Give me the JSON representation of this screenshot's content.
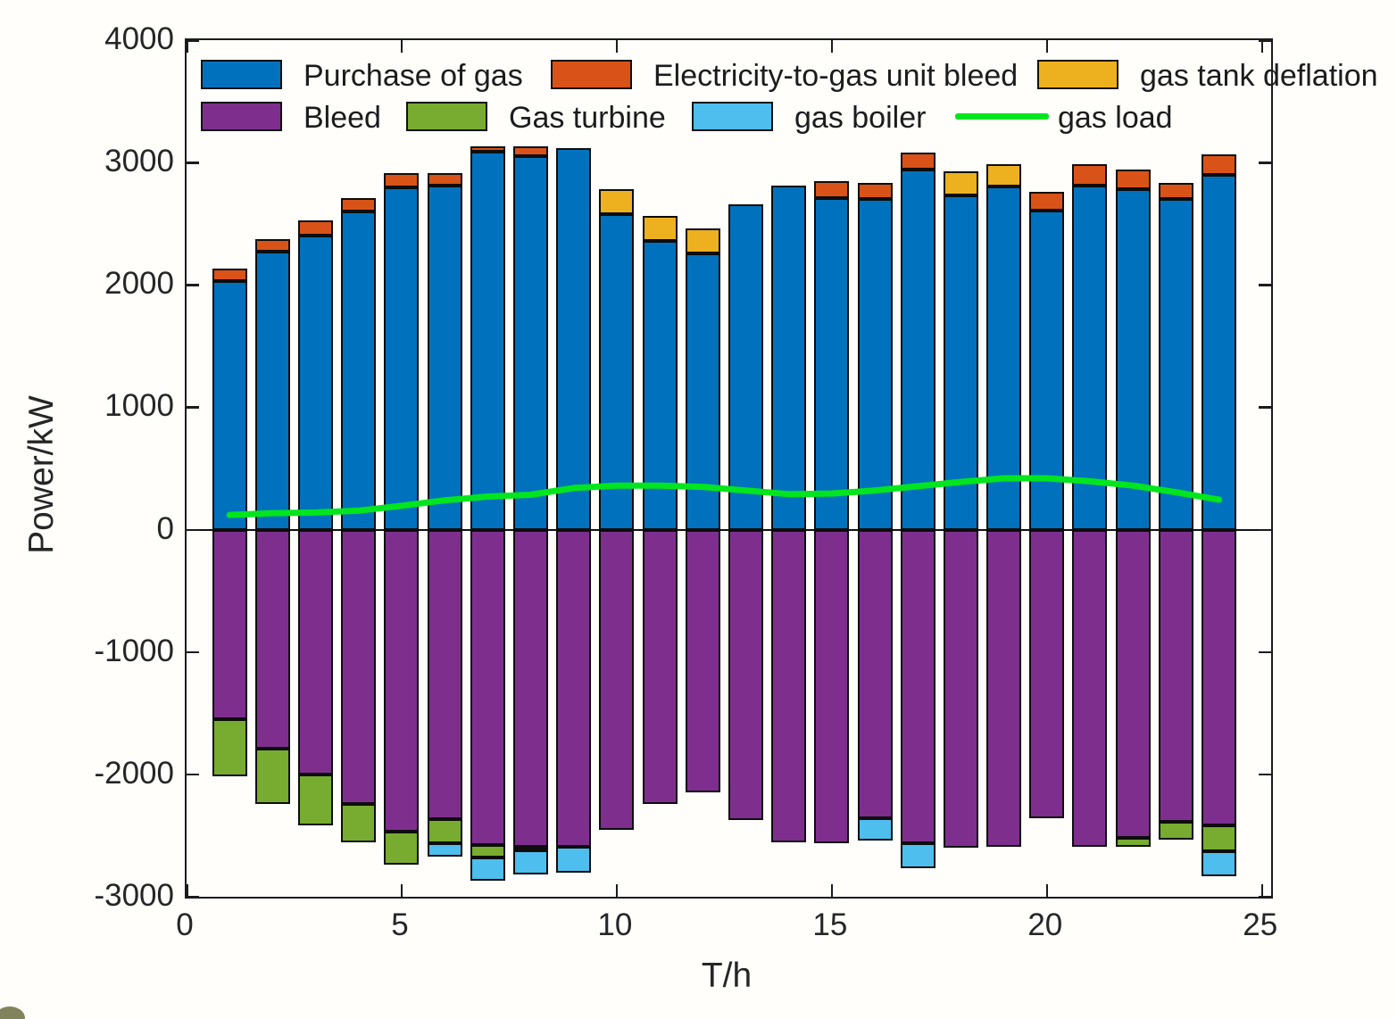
{
  "chart_data": {
    "type": "bar",
    "subtype": "stacked-bar-with-line",
    "title": "",
    "xlabel": "T/h",
    "ylabel": "Power/kW",
    "xlim": [
      0,
      25.2
    ],
    "ylim": [
      -3000,
      4000
    ],
    "xticks": [
      0,
      5,
      10,
      15,
      20,
      25
    ],
    "yticks": [
      4000,
      3000,
      2000,
      1000,
      0,
      -1000,
      -2000,
      -3000
    ],
    "grid": false,
    "legend_position": "top-inside",
    "hours": [
      1,
      2,
      3,
      4,
      5,
      6,
      7,
      8,
      9,
      10,
      11,
      12,
      13,
      14,
      15,
      16,
      17,
      18,
      19,
      20,
      21,
      22,
      23,
      24
    ],
    "series": [
      {
        "name": "Purchase of gas",
        "kind": "bar",
        "color": "#0072BD",
        "values": [
          2030,
          2275,
          2400,
          2600,
          2800,
          2810,
          3090,
          3050,
          3120,
          2580,
          2360,
          2260,
          2660,
          2815,
          2710,
          2700,
          2940,
          2730,
          2805,
          2610,
          2815,
          2785,
          2700,
          2900
        ]
      },
      {
        "name": "Electricity-to-gas unit bleed",
        "kind": "bar",
        "color": "#D95319",
        "values": [
          100,
          100,
          130,
          110,
          110,
          105,
          40,
          80,
          0,
          0,
          0,
          0,
          0,
          0,
          140,
          130,
          140,
          0,
          0,
          150,
          170,
          160,
          135,
          170
        ]
      },
      {
        "name": "gas tank deflation",
        "kind": "bar",
        "color": "#EDB120",
        "values": [
          0,
          0,
          0,
          0,
          0,
          0,
          0,
          0,
          0,
          200,
          200,
          200,
          0,
          0,
          0,
          0,
          0,
          200,
          185,
          0,
          0,
          0,
          0,
          0
        ]
      },
      {
        "name": "Bleed",
        "kind": "bar",
        "color": "#7E2F8E",
        "values": [
          -1550,
          -1790,
          -2000,
          -2245,
          -2465,
          -2365,
          -2580,
          -2590,
          -2590,
          -2455,
          -2240,
          -2150,
          -2370,
          -2555,
          -2560,
          -2355,
          -2560,
          -2600,
          -2595,
          -2355,
          -2590,
          -2520,
          -2390,
          -2415
        ]
      },
      {
        "name": "Gas turbine",
        "kind": "bar",
        "color": "#77AC30",
        "values": [
          -465,
          -455,
          -415,
          -310,
          -270,
          -195,
          -100,
          -30,
          0,
          0,
          0,
          0,
          0,
          0,
          0,
          0,
          0,
          0,
          0,
          0,
          0,
          -70,
          -140,
          -215
        ]
      },
      {
        "name": "gas boiler",
        "kind": "bar",
        "color": "#4DBEEE",
        "values": [
          0,
          0,
          0,
          0,
          0,
          -110,
          -190,
          -200,
          -210,
          0,
          0,
          0,
          0,
          0,
          0,
          -185,
          -210,
          0,
          0,
          0,
          0,
          0,
          0,
          -205
        ]
      },
      {
        "name": "gas load",
        "kind": "line",
        "color": "#00E51E",
        "values": [
          120,
          135,
          140,
          155,
          195,
          240,
          270,
          285,
          340,
          360,
          360,
          350,
          320,
          290,
          295,
          320,
          355,
          390,
          420,
          420,
          395,
          360,
          305,
          245
        ]
      }
    ]
  },
  "legend": {
    "rows": [
      [
        {
          "label": "Purchase of gas",
          "color": "#0072BD",
          "type": "swatch"
        },
        {
          "label": "Electricity-to-gas unit bleed",
          "color": "#D95319",
          "type": "swatch"
        },
        {
          "label": "gas tank deflation",
          "color": "#EDB120",
          "type": "swatch"
        }
      ],
      [
        {
          "label": "Bleed",
          "color": "#7E2F8E",
          "type": "swatch"
        },
        {
          "label": "Gas turbine",
          "color": "#77AC30",
          "type": "swatch"
        },
        {
          "label": "gas boiler",
          "color": "#4DBEEE",
          "type": "swatch"
        },
        {
          "label": "gas load",
          "color": "#00E51E",
          "type": "line"
        }
      ]
    ]
  }
}
